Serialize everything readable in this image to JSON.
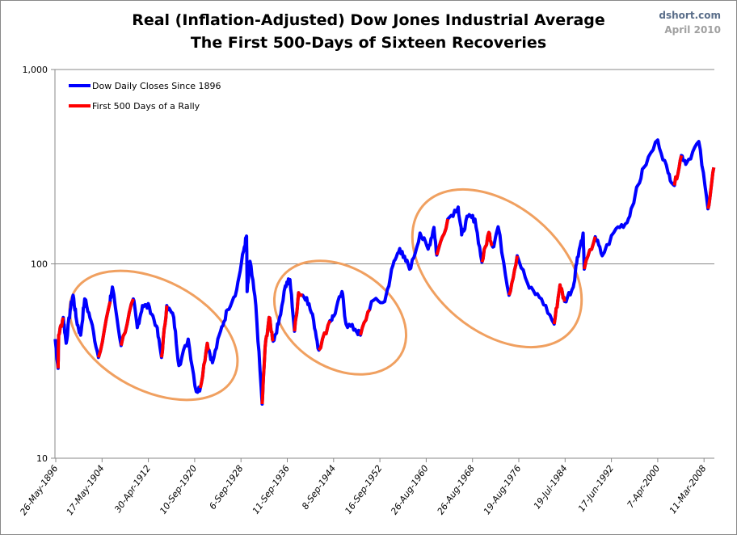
{
  "chart_data": {
    "type": "line",
    "title": "Real (Inflation-Adjusted) Dow Jones Industrial Average",
    "subtitle": "The First 500-Days of Sixteen Recoveries",
    "source": "dshort.com",
    "date_label": "April 2010",
    "yscale": "log",
    "ylim": [
      10,
      1000
    ],
    "y_ticks": [
      "10",
      "100",
      "1,000"
    ],
    "y_tick_values": [
      10,
      100,
      1000
    ],
    "x_ticks": [
      "26-May-1896",
      "17-May-1904",
      "30-Apr-1912",
      "10-Sep-1920",
      "6-Sep-1928",
      "11-Sep-1936",
      "8-Sep-1944",
      "16-Sep-1952",
      "26-Aug-1960",
      "26-Aug-1968",
      "19-Aug-1976",
      "19-Jul-1984",
      "17-Jun-1992",
      "7-Apr-2000",
      "11-Mar-2008"
    ],
    "xlim": [
      1896.4,
      2010.3
    ],
    "grid": "horizontal at 100",
    "legend_placement": "top-left",
    "colors": {
      "series": "#0000ff",
      "rally": "#ff0000",
      "ellipse": "#f0a060"
    },
    "series": [
      {
        "name": "Dow Daily Closes Since 1896",
        "color": "#0000ff",
        "x": [
          1896.3,
          1896.8,
          1896.9,
          1897.7,
          1898.2,
          1898.9,
          1899.4,
          1900.0,
          1900.7,
          1901.4,
          1902.5,
          1903.8,
          1905.8,
          1906.2,
          1907.7,
          1909.8,
          1910.5,
          1911.4,
          1912.6,
          1913.8,
          1914.7,
          1915.6,
          1916.8,
          1917.7,
          1919.3,
          1920.7,
          1921.4,
          1922.6,
          1923.5,
          1924.9,
          1926.1,
          1927.7,
          1928.9,
          1929.4,
          1929.5,
          1930.0,
          1931.0,
          1932.1,
          1932.6,
          1933.3,
          1934.0,
          1934.9,
          1936.1,
          1936.9,
          1937.7,
          1938.4,
          1939.8,
          1941.0,
          1941.9,
          1943.8,
          1944.5,
          1945.9,
          1946.6,
          1948.2,
          1949.1,
          1951.0,
          1953.3,
          1954.7,
          1955.9,
          1956.5,
          1957.8,
          1959.4,
          1960.8,
          1961.8,
          1962.3,
          1964.2,
          1966.0,
          1966.6,
          1967.7,
          1968.9,
          1970.1,
          1971.3,
          1972.0,
          1972.9,
          1974.8,
          1976.2,
          1978.3,
          1980.4,
          1982.6,
          1983.6,
          1984.4,
          1985.9,
          1986.6,
          1987.6,
          1987.8,
          1989.7,
          1990.9,
          1993.3,
          1995.2,
          1996.6,
          1998.1,
          2000.5,
          2002.3,
          2003.4,
          2004.6,
          2005.5,
          2007.6,
          2009.2,
          2010.2
        ],
        "y": [
          41,
          29,
          43,
          53,
          39,
          58,
          69,
          51,
          43,
          66,
          51,
          33,
          64,
          76,
          38,
          66,
          47,
          61,
          60,
          48,
          33,
          61,
          53,
          30,
          41,
          22,
          23,
          39,
          31,
          45,
          58,
          74,
          117,
          139,
          72,
          103,
          61,
          19,
          37,
          53,
          40,
          49,
          77,
          83,
          45,
          71,
          67,
          51,
          36,
          51,
          54,
          72,
          49,
          46,
          43,
          64,
          64,
          98,
          120,
          108,
          95,
          144,
          119,
          154,
          111,
          170,
          196,
          141,
          175,
          170,
          102,
          145,
          122,
          155,
          69,
          110,
          75,
          66,
          49,
          78,
          64,
          76,
          108,
          144,
          94,
          138,
          110,
          152,
          163,
          226,
          313,
          434,
          293,
          253,
          361,
          331,
          426,
          192,
          313
        ]
      },
      {
        "name": "First 500 Days of a Rally",
        "color": "#ff0000",
        "ranges": [
          [
            1896.8,
            1897.7
          ],
          [
            1903.8,
            1905.8
          ],
          [
            1907.7,
            1909.8
          ],
          [
            1914.7,
            1915.6
          ],
          [
            1921.4,
            1923.0
          ],
          [
            1932.1,
            1934.0
          ],
          [
            1937.7,
            1939.1
          ],
          [
            1941.9,
            1943.8
          ],
          [
            1949.1,
            1950.9
          ],
          [
            1962.3,
            1964.2
          ],
          [
            1970.1,
            1971.9
          ],
          [
            1974.8,
            1976.2
          ],
          [
            1982.6,
            1984.4
          ],
          [
            1987.8,
            1989.7
          ],
          [
            2003.4,
            2004.6
          ],
          [
            2009.2,
            2010.2
          ]
        ]
      }
    ]
  }
}
